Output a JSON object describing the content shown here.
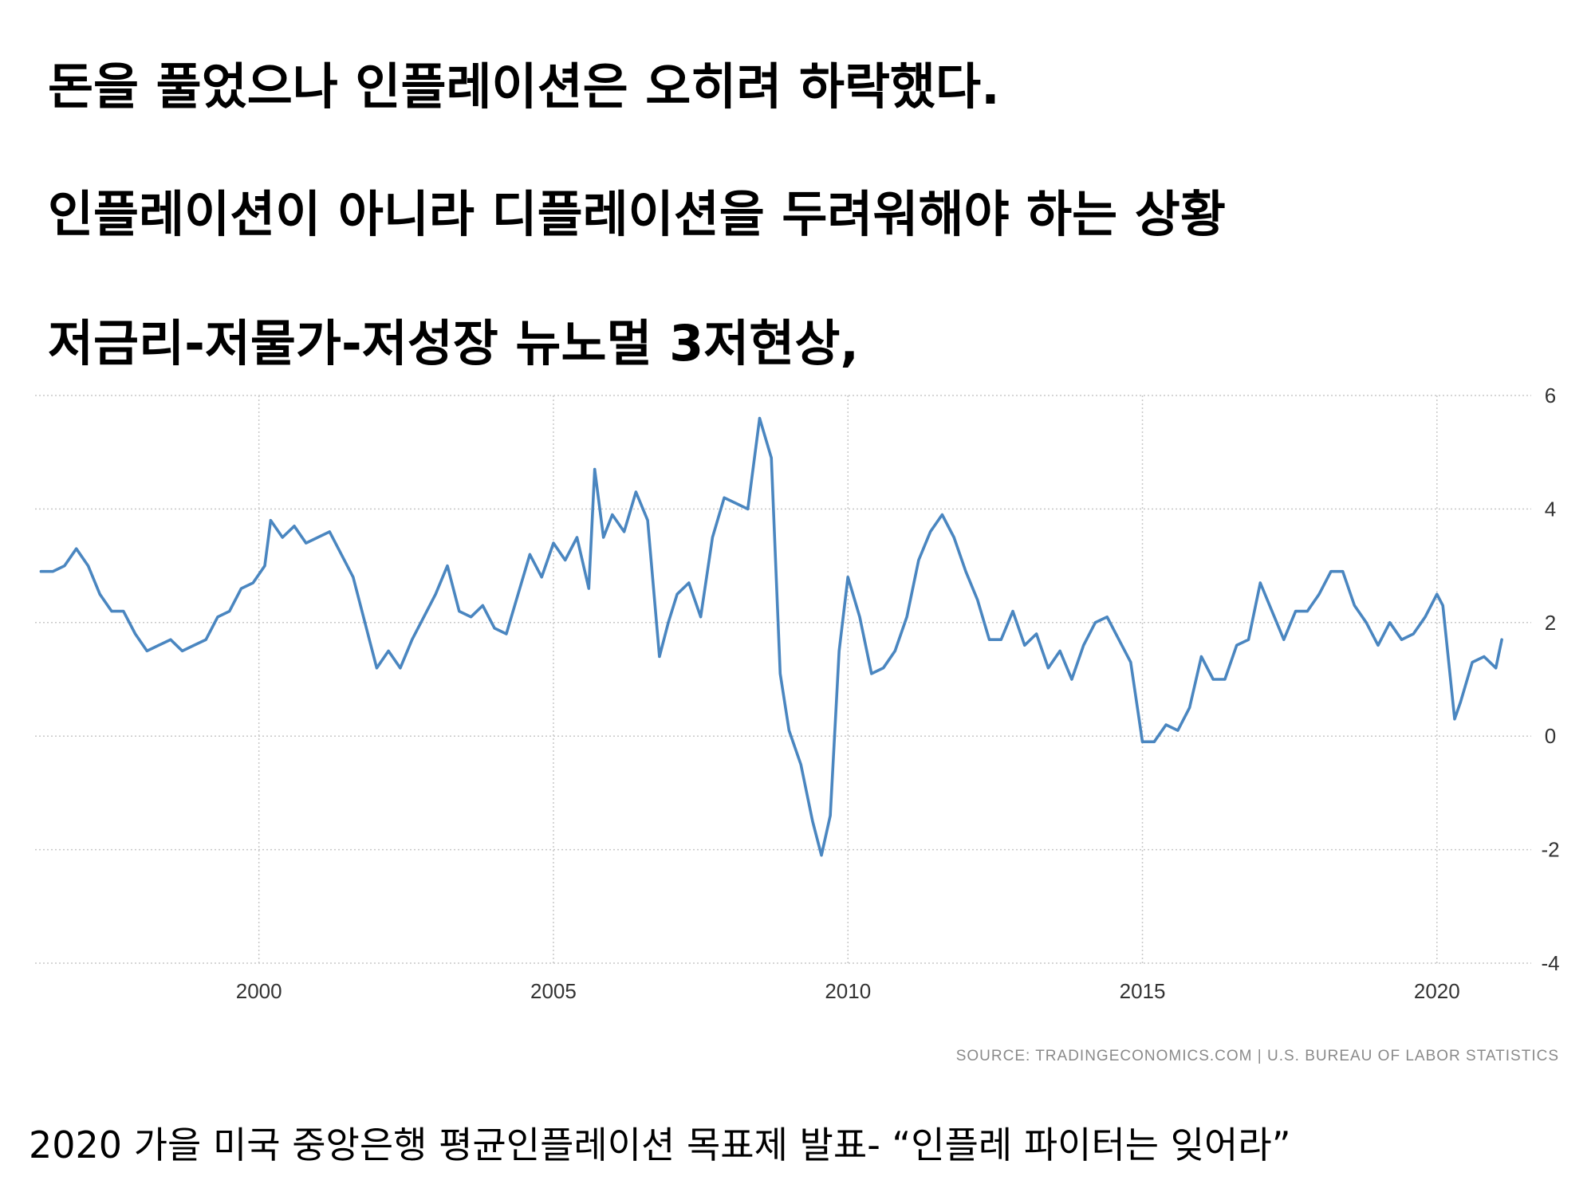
{
  "headlines": [
    "돈을 풀었으나 인플레이션은 오히려 하락했다.",
    "인플레이션이 아니라 디플레이션을 두려워해야 하는 상황",
    "저금리-저물가-저성장 뉴노멀 3저현상,"
  ],
  "caption": "2020 가을 미국 중앙은행 평균인플레이션 목표제 발표- “인플레 파이터는 잊어라”",
  "chart_data": {
    "type": "line",
    "title": "",
    "xlabel": "",
    "ylabel": "",
    "source": "SOURCE: TRADINGECONOMICS.COM | U.S. BUREAU OF LABOR STATISTICS",
    "x_ticks": [
      "2000",
      "2005",
      "2010",
      "2015",
      "2020"
    ],
    "y_ticks": [
      "6",
      "4",
      "2",
      "0",
      "-2",
      "-4"
    ],
    "xlim": [
      1996.2,
      2021.6
    ],
    "ylim": [
      -4,
      6
    ],
    "grid": true,
    "y_axis_position": "right",
    "line_color": "#4a86c0",
    "series": [
      {
        "x": [
          1996.3,
          1996.5,
          1996.7,
          1996.9,
          1997.1,
          1997.3,
          1997.5,
          1997.7,
          1997.9,
          1998.1,
          1998.3,
          1998.5,
          1998.7,
          1998.9,
          1999.1,
          1999.3,
          1999.5,
          1999.7,
          1999.9,
          2000.1,
          2000.2,
          2000.4,
          2000.6,
          2000.8,
          2001.0,
          2001.2,
          2001.4,
          2001.6,
          2001.8,
          2002.0,
          2002.2,
          2002.4,
          2002.6,
          2002.8,
          2003.0,
          2003.2,
          2003.4,
          2003.6,
          2003.8,
          2004.0,
          2004.2,
          2004.4,
          2004.6,
          2004.8,
          2005.0,
          2005.2,
          2005.4,
          2005.6,
          2005.7,
          2005.85,
          2006.0,
          2006.2,
          2006.4,
          2006.6,
          2006.8,
          2006.95,
          2007.1,
          2007.3,
          2007.5,
          2007.7,
          2007.9,
          2008.1,
          2008.3,
          2008.5,
          2008.7,
          2008.85,
          2009.0,
          2009.2,
          2009.4,
          2009.55,
          2009.7,
          2009.85,
          2010.0,
          2010.2,
          2010.4,
          2010.6,
          2010.8,
          2011.0,
          2011.2,
          2011.4,
          2011.6,
          2011.8,
          2012.0,
          2012.2,
          2012.4,
          2012.6,
          2012.8,
          2013.0,
          2013.2,
          2013.4,
          2013.6,
          2013.8,
          2014.0,
          2014.2,
          2014.4,
          2014.6,
          2014.8,
          2015.0,
          2015.2,
          2015.4,
          2015.6,
          2015.8,
          2016.0,
          2016.2,
          2016.4,
          2016.6,
          2016.8,
          2017.0,
          2017.2,
          2017.4,
          2017.6,
          2017.8,
          2018.0,
          2018.2,
          2018.4,
          2018.6,
          2018.8,
          2019.0,
          2019.2,
          2019.4,
          2019.6,
          2019.8,
          2020.0,
          2020.1,
          2020.3,
          2020.4,
          2020.6,
          2020.8,
          2021.0,
          2021.1
        ],
        "y": [
          2.9,
          2.9,
          3.0,
          3.3,
          3.0,
          2.5,
          2.2,
          2.2,
          1.8,
          1.5,
          1.6,
          1.7,
          1.5,
          1.6,
          1.7,
          2.1,
          2.2,
          2.6,
          2.7,
          3.0,
          3.8,
          3.5,
          3.7,
          3.4,
          3.5,
          3.6,
          3.2,
          2.8,
          2.0,
          1.2,
          1.5,
          1.2,
          1.7,
          2.1,
          2.5,
          3.0,
          2.2,
          2.1,
          2.3,
          1.9,
          1.8,
          2.5,
          3.2,
          2.8,
          3.4,
          3.1,
          3.5,
          2.6,
          4.7,
          3.5,
          3.9,
          3.6,
          4.3,
          3.8,
          1.4,
          2.0,
          2.5,
          2.7,
          2.1,
          3.5,
          4.2,
          4.1,
          4.0,
          5.6,
          4.9,
          1.1,
          0.1,
          -0.5,
          -1.5,
          -2.1,
          -1.4,
          1.5,
          2.8,
          2.1,
          1.1,
          1.2,
          1.5,
          2.1,
          3.1,
          3.6,
          3.9,
          3.5,
          2.9,
          2.4,
          1.7,
          1.7,
          2.2,
          1.6,
          1.8,
          1.2,
          1.5,
          1.0,
          1.6,
          2.0,
          2.1,
          1.7,
          1.3,
          -0.1,
          -0.1,
          0.2,
          0.1,
          0.5,
          1.4,
          1.0,
          1.0,
          1.6,
          1.7,
          2.7,
          2.2,
          1.7,
          2.2,
          2.2,
          2.5,
          2.9,
          2.9,
          2.3,
          2.0,
          1.6,
          2.0,
          1.7,
          1.8,
          2.1,
          2.5,
          2.3,
          0.3,
          0.6,
          1.3,
          1.4,
          1.2,
          1.7
        ]
      }
    ]
  }
}
